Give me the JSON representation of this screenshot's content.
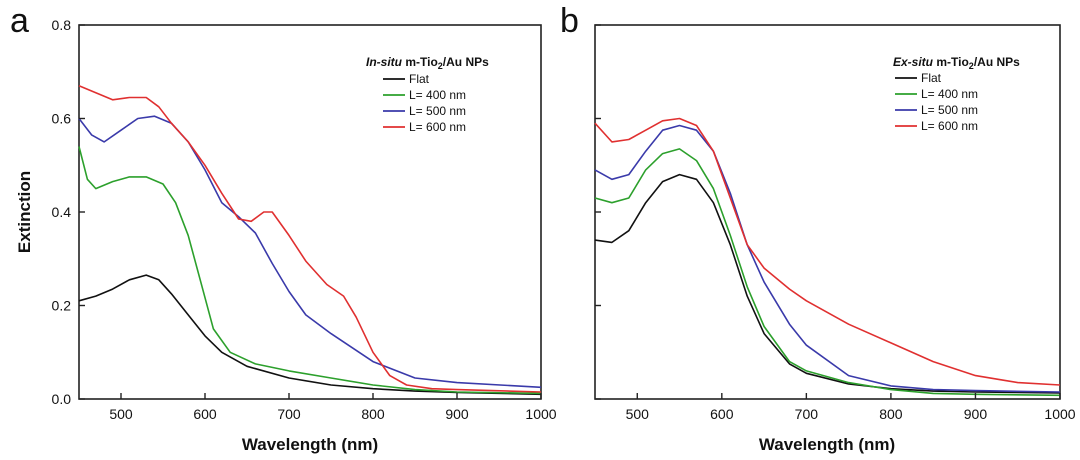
{
  "chart_data": [
    {
      "panel_label": "a",
      "type": "line",
      "title": "",
      "legend_title": {
        "italic": "In-situ",
        "main": " m-Tio",
        "sub": "2",
        "tail": "/Au NPs"
      },
      "xlabel": "Wavelength (nm)",
      "ylabel": "Extinction",
      "xlim": [
        450,
        1000
      ],
      "ylim": [
        0,
        0.8
      ],
      "xticks": [
        500,
        600,
        700,
        800,
        900,
        1000
      ],
      "yticks": [
        0.0,
        0.2,
        0.4,
        0.6,
        0.8
      ],
      "ytick_labels": [
        "0.0",
        "0.2",
        "0.4",
        "0.6",
        "0.8"
      ],
      "legend_position": "top-right",
      "series": [
        {
          "name": "Flat",
          "color": "#111111",
          "x": [
            450,
            470,
            490,
            510,
            530,
            545,
            560,
            580,
            600,
            620,
            650,
            700,
            750,
            800,
            850,
            900,
            1000
          ],
          "y": [
            0.21,
            0.22,
            0.235,
            0.255,
            0.265,
            0.255,
            0.225,
            0.18,
            0.135,
            0.1,
            0.07,
            0.045,
            0.03,
            0.022,
            0.017,
            0.014,
            0.01
          ]
        },
        {
          "name": "L= 400 nm",
          "color": "#2ca02c",
          "x": [
            450,
            460,
            470,
            490,
            510,
            530,
            550,
            565,
            580,
            595,
            610,
            630,
            660,
            700,
            750,
            800,
            850,
            900,
            1000
          ],
          "y": [
            0.54,
            0.47,
            0.45,
            0.465,
            0.475,
            0.475,
            0.46,
            0.42,
            0.35,
            0.25,
            0.15,
            0.1,
            0.075,
            0.06,
            0.045,
            0.03,
            0.02,
            0.015,
            0.012
          ]
        },
        {
          "name": "L= 500 nm",
          "color": "#3a3aaa",
          "x": [
            450,
            465,
            480,
            500,
            520,
            540,
            560,
            580,
            600,
            620,
            640,
            660,
            680,
            700,
            720,
            750,
            800,
            850,
            900,
            1000
          ],
          "y": [
            0.6,
            0.565,
            0.55,
            0.575,
            0.6,
            0.605,
            0.59,
            0.55,
            0.49,
            0.42,
            0.39,
            0.355,
            0.29,
            0.23,
            0.18,
            0.14,
            0.08,
            0.045,
            0.035,
            0.025
          ]
        },
        {
          "name": "L= 600 nm",
          "color": "#e03030",
          "x": [
            450,
            470,
            490,
            510,
            530,
            545,
            560,
            580,
            600,
            620,
            640,
            655,
            670,
            680,
            700,
            720,
            745,
            765,
            780,
            800,
            820,
            840,
            870,
            900,
            1000
          ],
          "y": [
            0.67,
            0.655,
            0.64,
            0.645,
            0.645,
            0.625,
            0.59,
            0.55,
            0.5,
            0.44,
            0.385,
            0.38,
            0.4,
            0.4,
            0.35,
            0.295,
            0.245,
            0.22,
            0.175,
            0.1,
            0.05,
            0.03,
            0.022,
            0.02,
            0.015
          ]
        }
      ]
    },
    {
      "panel_label": "b",
      "type": "line",
      "title": "",
      "legend_title": {
        "italic": "Ex-situ",
        "main": " m-Tio",
        "sub": "2",
        "tail": "/Au NPs"
      },
      "xlabel": "Wavelength (nm)",
      "ylabel": "",
      "xlim": [
        450,
        1000
      ],
      "ylim": [
        0,
        0.8
      ],
      "xticks": [
        500,
        600,
        700,
        800,
        900,
        1000
      ],
      "yticks": [
        0.0,
        0.2,
        0.4,
        0.6,
        0.8
      ],
      "ytick_labels": [],
      "legend_position": "top-right",
      "series": [
        {
          "name": "Flat",
          "color": "#111111",
          "x": [
            450,
            470,
            490,
            510,
            530,
            550,
            570,
            590,
            610,
            630,
            650,
            680,
            700,
            750,
            800,
            850,
            900,
            1000
          ],
          "y": [
            0.34,
            0.335,
            0.36,
            0.42,
            0.465,
            0.48,
            0.47,
            0.42,
            0.33,
            0.22,
            0.14,
            0.075,
            0.055,
            0.032,
            0.022,
            0.017,
            0.015,
            0.013
          ]
        },
        {
          "name": "L= 400 nm",
          "color": "#2ca02c",
          "x": [
            450,
            470,
            490,
            510,
            530,
            550,
            570,
            590,
            610,
            630,
            650,
            680,
            700,
            750,
            800,
            850,
            900,
            1000
          ],
          "y": [
            0.43,
            0.42,
            0.43,
            0.49,
            0.525,
            0.535,
            0.51,
            0.45,
            0.35,
            0.24,
            0.155,
            0.08,
            0.06,
            0.035,
            0.02,
            0.012,
            0.01,
            0.008
          ]
        },
        {
          "name": "L= 500 nm",
          "color": "#3a3aaa",
          "x": [
            450,
            470,
            490,
            510,
            530,
            550,
            570,
            590,
            610,
            630,
            650,
            680,
            700,
            750,
            800,
            850,
            900,
            1000
          ],
          "y": [
            0.49,
            0.47,
            0.48,
            0.53,
            0.575,
            0.585,
            0.575,
            0.53,
            0.44,
            0.33,
            0.25,
            0.16,
            0.115,
            0.05,
            0.028,
            0.02,
            0.018,
            0.015
          ]
        },
        {
          "name": "L= 600 nm",
          "color": "#e03030",
          "x": [
            450,
            470,
            490,
            510,
            530,
            550,
            570,
            590,
            610,
            630,
            650,
            680,
            700,
            750,
            800,
            850,
            900,
            950,
            1000
          ],
          "y": [
            0.59,
            0.55,
            0.555,
            0.575,
            0.595,
            0.6,
            0.585,
            0.53,
            0.43,
            0.33,
            0.28,
            0.235,
            0.21,
            0.16,
            0.12,
            0.08,
            0.05,
            0.035,
            0.03
          ]
        }
      ]
    }
  ]
}
